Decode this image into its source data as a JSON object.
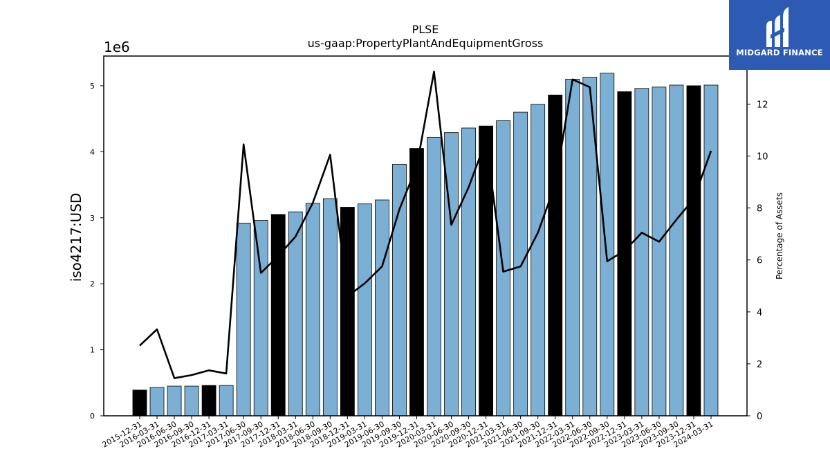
{
  "chart_data": {
    "type": "bar",
    "title": "PLSE",
    "subtitle": "us-gaap:PropertyPlantAndEquipmentGross",
    "y_exponent_label": "1e6",
    "ylabel": "iso4217:USD",
    "y2label": "Percentage of Assets",
    "ylim": [
      0,
      5450000
    ],
    "y2lim": [
      0,
      13.85
    ],
    "yticks": [
      0,
      1,
      2,
      3,
      4,
      5
    ],
    "y2ticks": [
      0,
      2,
      4,
      6,
      8,
      10,
      12
    ],
    "categories": [
      "2015-12-31",
      "2016-03-31",
      "2016-06-30",
      "2016-09-30",
      "2016-12-31",
      "2017-03-31",
      "2017-06-30",
      "2017-09-30",
      "2017-12-31",
      "2018-03-31",
      "2018-06-30",
      "2018-09-30",
      "2018-12-31",
      "2019-03-31",
      "2019-06-30",
      "2019-09-30",
      "2019-12-31",
      "2020-03-31",
      "2020-06-30",
      "2020-09-30",
      "2020-12-31",
      "2021-03-31",
      "2021-06-30",
      "2021-09-30",
      "2021-12-31",
      "2022-03-31",
      "2022-06-30",
      "2022-09-30",
      "2022-12-31",
      "2023-03-31",
      "2023-06-30",
      "2023-09-30",
      "2023-12-31",
      "2024-03-31"
    ],
    "series": [
      {
        "kind": "bar",
        "values": [
          390000,
          430000,
          450000,
          450000,
          460000,
          460000,
          2920000,
          2960000,
          3050000,
          3090000,
          3220000,
          3290000,
          3160000,
          3210000,
          3270000,
          3810000,
          4050000,
          4220000,
          4290000,
          4360000,
          4390000,
          4470000,
          4600000,
          4720000,
          4860000,
          5100000,
          5130000,
          5190000,
          4910000,
          4960000,
          4980000,
          5010000,
          5000000,
          5010000
        ]
      },
      {
        "kind": "line",
        "axis": "right",
        "values": [
          2.7,
          3.33,
          1.45,
          1.57,
          1.75,
          1.63,
          10.45,
          5.5,
          6.15,
          6.9,
          8.2,
          10.05,
          4.6,
          5.1,
          5.75,
          7.95,
          9.6,
          13.25,
          7.35,
          8.8,
          10.6,
          5.55,
          5.75,
          7.05,
          8.9,
          12.95,
          12.65,
          5.95,
          6.35,
          7.05,
          6.7,
          7.55,
          8.35,
          10.2
        ]
      }
    ],
    "highlighted_categories": [
      "2015-12-31",
      "2016-12-31",
      "2017-12-31",
      "2018-12-31",
      "2019-12-31",
      "2020-12-31",
      "2021-12-31",
      "2022-12-31",
      "2023-12-31"
    ],
    "colors": {
      "bar": "#7bafd4",
      "bar_highlight": "#000000",
      "line": "#000000",
      "bar_edge": "#000000"
    },
    "grid": false,
    "legend": "none"
  },
  "logo": {
    "text": "MIDGARD FINANCE",
    "background": "#2d5bb3"
  }
}
